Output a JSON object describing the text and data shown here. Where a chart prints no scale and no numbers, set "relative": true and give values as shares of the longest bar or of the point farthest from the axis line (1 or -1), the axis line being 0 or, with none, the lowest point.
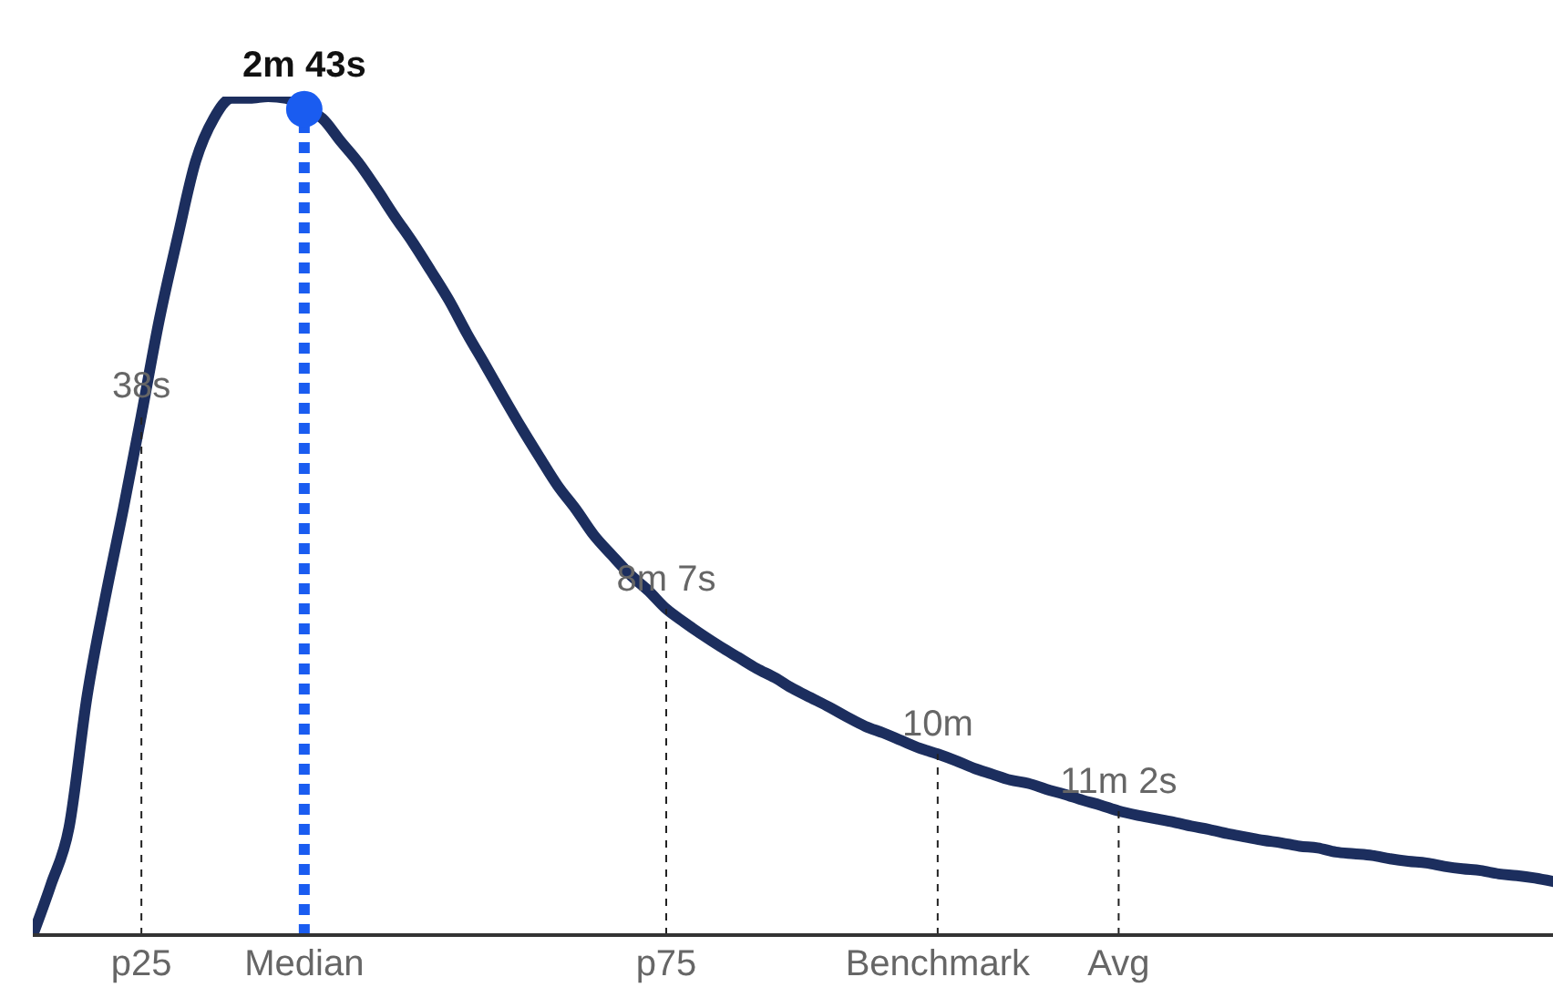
{
  "chart_data": {
    "type": "line",
    "relative": true,
    "categories": [
      null,
      null,
      null,
      null,
      null,
      null,
      "p25",
      null,
      null,
      null,
      null,
      null,
      null,
      null,
      null,
      "Median",
      null,
      null,
      null,
      null,
      null,
      null,
      null,
      null,
      null,
      null,
      null,
      null,
      null,
      null,
      null,
      null,
      null,
      null,
      null,
      "p75",
      null,
      null,
      null,
      null,
      null,
      null,
      null,
      null,
      null,
      null,
      null,
      null,
      null,
      null,
      "Benchmark",
      null,
      null,
      null,
      null,
      null,
      null,
      null,
      null,
      null,
      "Avg",
      null,
      null,
      null,
      null,
      null,
      null,
      null,
      null,
      null,
      null,
      null,
      null,
      null,
      null,
      null,
      null,
      null,
      null,
      null,
      null,
      null,
      null,
      null,
      null
    ],
    "series": [
      {
        "color": "#1c2e5e",
        "values": [
          0,
          0.06,
          0.128,
          0.285,
          0.402,
          0.508,
          0.62,
          0.735,
          0.832,
          0.923,
          0.974,
          0.998,
          0.998,
          1,
          0.998,
          0.985,
          0.974,
          0.947,
          0.921,
          0.89,
          0.857,
          0.826,
          0.792,
          0.757,
          0.717,
          0.68,
          0.642,
          0.605,
          0.57,
          0.536,
          0.508,
          0.477,
          0.453,
          0.43,
          0.411,
          0.389,
          0.373,
          0.358,
          0.344,
          0.331,
          0.318,
          0.307,
          0.294,
          0.283,
          0.272,
          0.26,
          0.249,
          0.241,
          0.232,
          0.223,
          0.216,
          0.208,
          0.199,
          0.192,
          0.185,
          0.181,
          0.174,
          0.168,
          0.161,
          0.155,
          0.148,
          0.143,
          0.139,
          0.135,
          0.13,
          0.126,
          0.121,
          0.117,
          0.113,
          0.11,
          0.106,
          0.104,
          0.099,
          0.097,
          0.095,
          0.091,
          0.088,
          0.086,
          0.082,
          0.079,
          0.077,
          0.073,
          0.071,
          0.068,
          0.064
        ]
      }
    ],
    "ref_lines": [
      {
        "axis": "x",
        "value": "p25",
        "label": "38s",
        "color": "#222222",
        "line_style": "dashed"
      },
      {
        "axis": "x",
        "value": "Median",
        "label": "2m 43s",
        "color": "#1a5cf0",
        "line_style": "dotted"
      },
      {
        "axis": "x",
        "value": "p75",
        "label": "8m 7s",
        "color": "#222222",
        "line_style": "dashed"
      },
      {
        "axis": "x",
        "value": "Benchmark",
        "label": "10m",
        "color": "#222222",
        "line_style": "dashed"
      },
      {
        "axis": "x",
        "value": "Avg",
        "label": "11m 2s",
        "color": "#222222",
        "line_style": "dashed"
      }
    ],
    "grid": false,
    "legend": false,
    "marker": "none",
    "line_style": "solid"
  }
}
